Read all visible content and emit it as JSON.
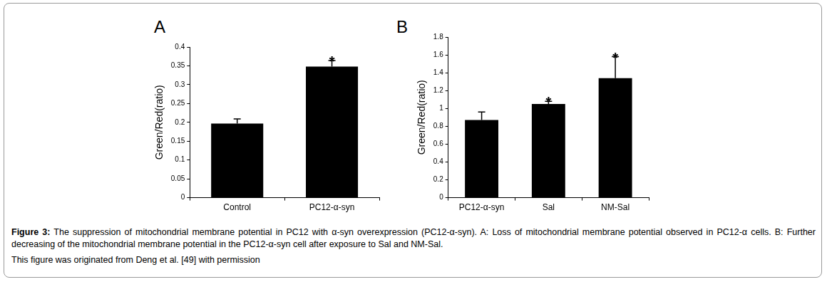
{
  "chart_data": [
    {
      "type": "bar",
      "title": "A",
      "y_label": "Green/Red(ratio)",
      "categories": [
        "Control",
        "PC12-α-syn"
      ],
      "values": [
        0.197,
        0.348
      ],
      "errors": [
        0.012,
        0.016
      ],
      "significance": [
        null,
        "*"
      ],
      "color": "#000000",
      "ylim": [
        0,
        0.4
      ],
      "yticks": [
        0,
        0.05,
        0.1,
        0.15,
        0.2,
        0.25,
        0.3,
        0.35,
        0.4
      ],
      "grid": false
    },
    {
      "type": "bar",
      "title": "B",
      "y_label": "Green/Red(ratio)",
      "categories": [
        "PC12-α-syn",
        "Sal",
        "NM-Sal"
      ],
      "values": [
        0.87,
        1.05,
        1.34
      ],
      "errors": [
        0.09,
        0.03,
        0.24
      ],
      "significance": [
        null,
        "*",
        "*"
      ],
      "color": "#000000",
      "ylim": [
        0,
        1.8
      ],
      "yticks": [
        0,
        0.2,
        0.4,
        0.6,
        0.8,
        1,
        1.2,
        1.4,
        1.6,
        1.8
      ],
      "grid": false
    }
  ],
  "caption": {
    "label": "Figure 3:",
    "text": "The suppression of mitochondrial membrane potential in PC12 with α-syn overexpression (PC12-α-syn). A: Loss of mitochondrial membrane potential observed in PC12-α cells. B: Further decreasing of the mitochondrial membrane potential in the PC12-α-syn cell after exposure to Sal and NM-Sal.",
    "source": "This figure was originated from Deng et al. [49] with permission"
  }
}
